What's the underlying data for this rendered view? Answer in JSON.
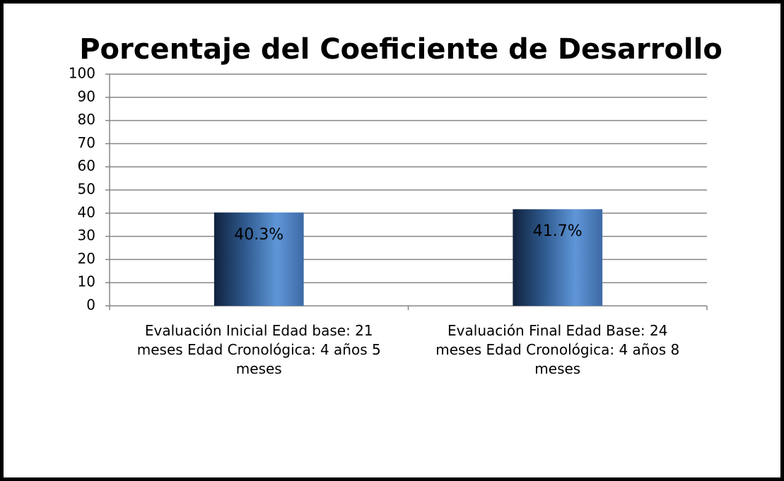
{
  "chart_data": {
    "type": "bar",
    "title": "Porcentaje del Coeficiente de Desarrollo",
    "categories": [
      "Evaluación Inicial  Edad base: 21 meses  Edad Cronológica: 4 años 5 meses",
      "Evaluación Final Edad Base: 24 meses Edad Cronológica: 4 años 8 meses"
    ],
    "values": [
      40.3,
      41.7
    ],
    "value_labels": [
      "40.3%",
      "41.7%"
    ],
    "color": "#4a7fc0",
    "ylim": [
      0,
      100
    ],
    "yticks": [
      0,
      10,
      20,
      30,
      40,
      50,
      60,
      70,
      80,
      90,
      100
    ],
    "grid": true
  }
}
